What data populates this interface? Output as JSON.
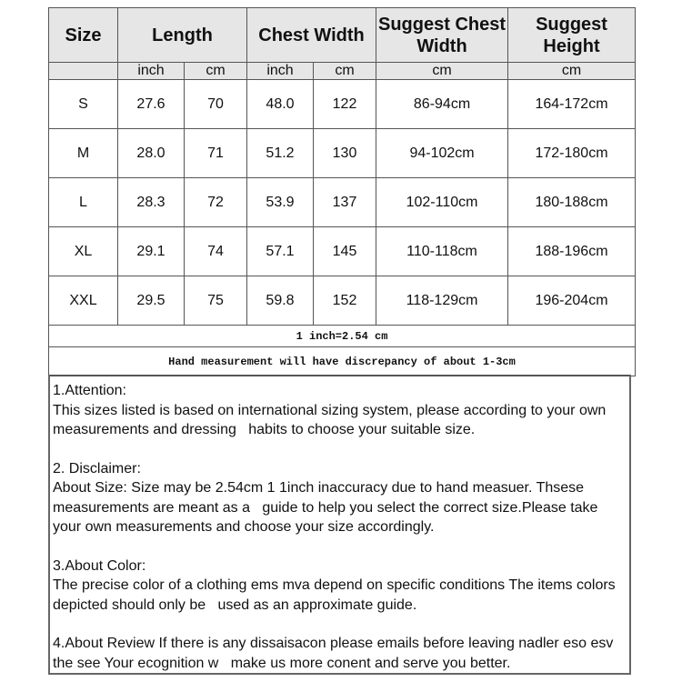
{
  "headers": {
    "size": "Size",
    "length": "Length",
    "chest_width": "Chest Width",
    "suggest_chest": "Suggest Chest Width",
    "suggest_height": "Suggest Height"
  },
  "units": [
    "inch",
    "cm",
    "inch",
    "cm",
    "cm",
    "cm"
  ],
  "rows": [
    [
      "S",
      "27.6",
      "70",
      "48.0",
      "122",
      "86-94cm",
      "164-172cm"
    ],
    [
      "M",
      "28.0",
      "71",
      "51.2",
      "130",
      "94-102cm",
      "172-180cm"
    ],
    [
      "L",
      "28.3",
      "72",
      "53.9",
      "137",
      "102-110cm",
      "180-188cm"
    ],
    [
      "XL",
      "29.1",
      "74",
      "57.1",
      "145",
      "110-118cm",
      "188-196cm"
    ],
    [
      "XXL",
      "29.5",
      "75",
      "59.8",
      "152",
      "118-129cm",
      "196-204cm"
    ]
  ],
  "notes": {
    "conversion": "1 inch=2.54 cm",
    "discrepancy": "Hand measurement will have discrepancy of about 1-3cm"
  },
  "sections": [
    {
      "title": "1.Attention:",
      "body": "This sizes listed is based on international sizing system, please according to your own measurements and dressing   habits to choose your suitable size."
    },
    {
      "title": "2. Disclaimer:",
      "body": "About Size: Size may be 2.54cm 1 1inch inaccuracy due to hand measuer. Thsese measurements are meant as a   guide to help you select the correct size.Please take your own measurements and choose your size accordingly."
    },
    {
      "title": "3.About Color:",
      "body": "The precise color of a clothing ems mva depend on specific conditions The items colors depicted should only be   used as an approximate guide."
    },
    {
      "title": "",
      "body": "4.About Review If there is any dissaisacon please emails before leaving nadler eso esv the see Your ecognition w   make us more conent and serve you better."
    }
  ]
}
